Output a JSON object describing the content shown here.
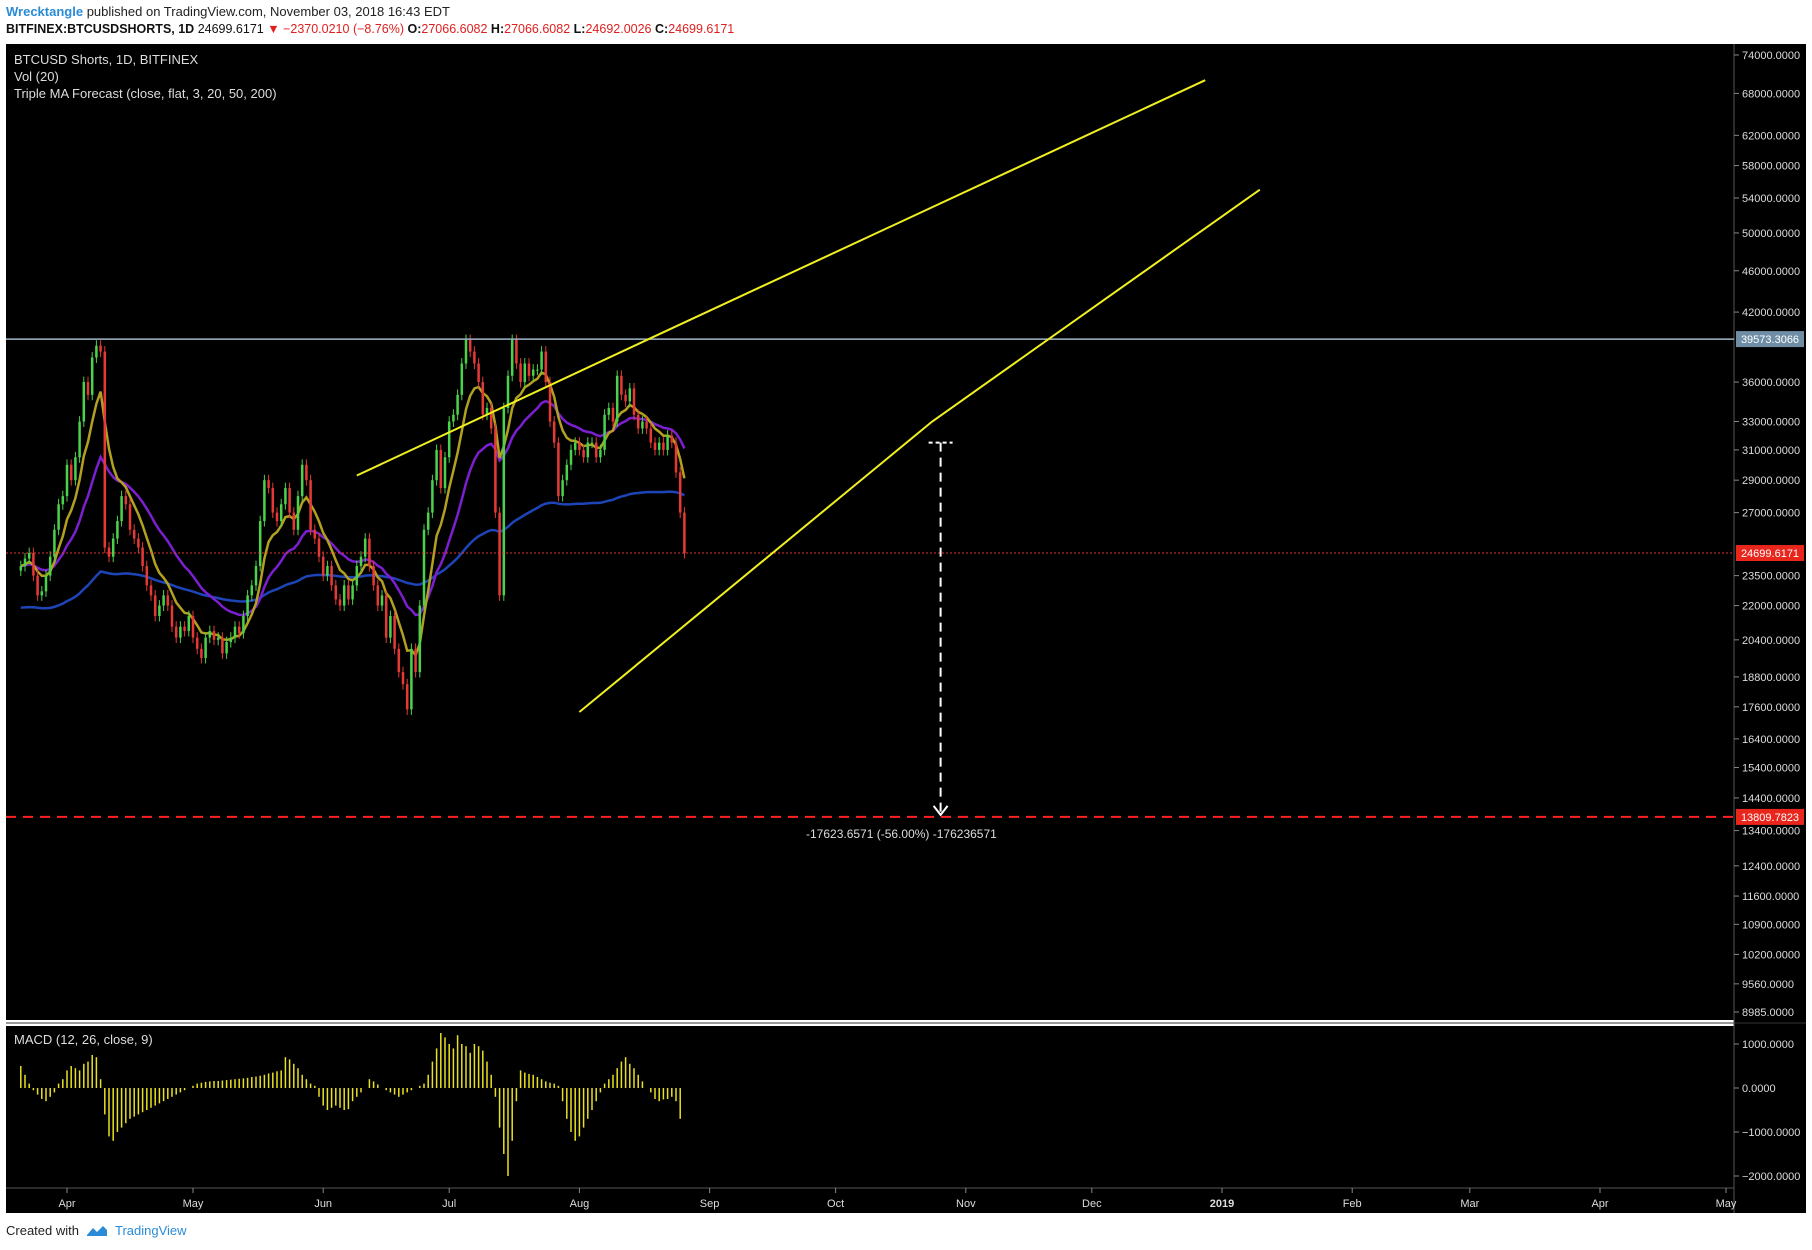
{
  "header": {
    "author": "Wrecktangle",
    "published_text": "published on TradingView.com, November 03, 2018 16:43 EDT",
    "symbol": "BITFINEX:BTCUSDSHORTS, 1D",
    "last": "24699.6171",
    "arrow": "▼",
    "change": "−2370.0210 (−8.76%)",
    "open_label": "O:",
    "open": "27066.6082",
    "high_label": "H:",
    "high": "27066.6082",
    "low_label": "L:",
    "low": "24692.0026",
    "close_label": "C:",
    "close": "24699.6171"
  },
  "legend": {
    "title": "BTCUSD Shorts, 1D, BITFINEX",
    "vol": "Vol (20)",
    "triple_ma": "Triple MA Forecast (close, flat, 3, 20, 50, 200)",
    "macd": "MACD (12, 26, close, 9)"
  },
  "footer": {
    "created_with": "Created with",
    "brand": "TradingView"
  },
  "colors": {
    "background": "#000000",
    "up_candle": "#4bd14b",
    "down_candle": "#e53935",
    "ma20": "#b3a020",
    "ma50": "#7b1fd0",
    "ma200": "#1e45b8",
    "trendline": "#f0f020",
    "resistance_line": "#9fb6c8",
    "target_line": "#ff2020",
    "macd_histogram": "#e8e020"
  },
  "chart_data": {
    "type": "candlestick",
    "x_axis_ticks": [
      "Apr",
      "May",
      "Jun",
      "Jul",
      "Aug",
      "Sep",
      "Oct",
      "Nov",
      "Dec",
      "2019",
      "Feb",
      "Mar",
      "Apr",
      "May"
    ],
    "y_axis_ticks": [
      "74000.0000",
      "68000.0000",
      "62000.0000",
      "58000.0000",
      "54000.0000",
      "50000.0000",
      "46000.0000",
      "42000.0000",
      "36000.0000",
      "33000.0000",
      "31000.0000",
      "29000.0000",
      "27000.0000",
      "23500.0000",
      "22000.0000",
      "20400.0000",
      "18800.0000",
      "17600.0000",
      "16400.0000",
      "15400.0000",
      "14400.0000",
      "13400.0000",
      "12400.0000",
      "11600.0000",
      "10900.0000",
      "10200.0000",
      "9560.0000",
      "8985.0000"
    ],
    "y_scale": "log",
    "price_labels": {
      "resistance": "39573.3066",
      "last_price": "24699.6171",
      "target": "13809.7823"
    },
    "measure_annotation": "-17623.6571 (-56.00%) -176236571",
    "macd_ticks": [
      "1000.0000",
      "0.0000",
      "−1000.0000",
      "−2000.0000"
    ],
    "candles": {
      "description": "daily OHLC closes (approx.) from late March to early November 2018",
      "start": "2018-03-21",
      "close": [
        24000,
        24400,
        24700,
        23500,
        22500,
        22700,
        23500,
        24500,
        26000,
        27500,
        28000,
        30000,
        29000,
        30500,
        33000,
        36000,
        35000,
        38000,
        39000,
        38500,
        25000,
        24500,
        25500,
        26500,
        28000,
        27500,
        26000,
        25500,
        25000,
        24000,
        23000,
        22500,
        21500,
        22000,
        22500,
        22000,
        21000,
        20500,
        21000,
        20800,
        21500,
        20500,
        20000,
        19600,
        20500,
        20800,
        20400,
        20500,
        19800,
        20300,
        20500,
        21000,
        20700,
        21500,
        22500,
        23000,
        24000,
        26500,
        29000,
        28500,
        27000,
        26500,
        27500,
        28500,
        27000,
        26000,
        28000,
        30000,
        29000,
        26000,
        25500,
        24500,
        23500,
        24000,
        23000,
        22300,
        22000,
        23000,
        22300,
        23000,
        24000,
        24500,
        25500,
        24000,
        23000,
        22000,
        22500,
        20500,
        21500,
        20000,
        19000,
        18500,
        17500,
        20000,
        19000,
        22000,
        26000,
        27000,
        29000,
        31000,
        28500,
        30500,
        33000,
        33500,
        35000,
        37500,
        39500,
        38500,
        37500,
        36000,
        33500,
        34000,
        32500,
        27000,
        22500,
        34000,
        36500,
        39500,
        37500,
        36000,
        37500,
        36500,
        37000,
        37000,
        38500,
        36000,
        33000,
        31500,
        28000,
        29000,
        30000,
        31000,
        31500,
        31000,
        30500,
        31500,
        31500,
        30500,
        31000,
        33500,
        34000,
        33000,
        36500,
        35000,
        34500,
        35500,
        33500,
        32500,
        33000,
        32500,
        31500,
        31000,
        31500,
        31000,
        32000,
        31500,
        29500,
        27000,
        24699.6171
      ]
    },
    "macd_histogram": {
      "description": "MACD histogram values (approx.)",
      "values": [
        500,
        300,
        100,
        -50,
        -150,
        -250,
        -300,
        -200,
        -100,
        100,
        200,
        400,
        500,
        450,
        400,
        550,
        600,
        750,
        700,
        200,
        -600,
        -1100,
        -1200,
        -1000,
        -900,
        -800,
        -700,
        -650,
        -600,
        -550,
        -500,
        -450,
        -400,
        -350,
        -300,
        -250,
        -200,
        -150,
        -100,
        -50,
        0,
        50,
        100,
        120,
        140,
        150,
        160,
        160,
        170,
        180,
        190,
        200,
        210,
        220,
        230,
        250,
        260,
        280,
        300,
        330,
        350,
        380,
        400,
        700,
        650,
        550,
        450,
        300,
        200,
        100,
        50,
        -200,
        -400,
        -500,
        -450,
        -400,
        -450,
        -500,
        -480,
        -300,
        -200,
        -100,
        0,
        200,
        150,
        80,
        0,
        -50,
        -100,
        -150,
        -200,
        -150,
        -100,
        -50,
        0,
        50,
        100,
        300,
        600,
        900,
        1250,
        1150,
        1000,
        900,
        1200,
        1000,
        950,
        800,
        1000,
        950,
        850,
        600,
        300,
        -200,
        -900,
        -1500,
        -2000,
        -1200,
        -300,
        400,
        350,
        320,
        300,
        250,
        200,
        150,
        120,
        100,
        50,
        -300,
        -700,
        -1000,
        -1200,
        -1100,
        -900,
        -700,
        -500,
        -300,
        -100,
        100,
        200,
        300,
        450,
        600,
        700,
        550,
        450,
        300,
        150,
        0,
        -100,
        -250,
        -300,
        -260,
        -250,
        -200,
        -300,
        -700
      ]
    },
    "lines": {
      "resistance_level": 39573.3066,
      "target_level": 13809.7823,
      "upper_trendline": [
        [
          "2018-06-09",
          29300
        ],
        [
          "2018-08-20",
          40000
        ],
        [
          "2018-12-28",
          70000
        ]
      ],
      "lower_trendline": [
        [
          "2018-08-01",
          17400
        ],
        [
          "2018-10-24",
          33000
        ],
        [
          "2019-01-10",
          55000
        ]
      ]
    }
  }
}
